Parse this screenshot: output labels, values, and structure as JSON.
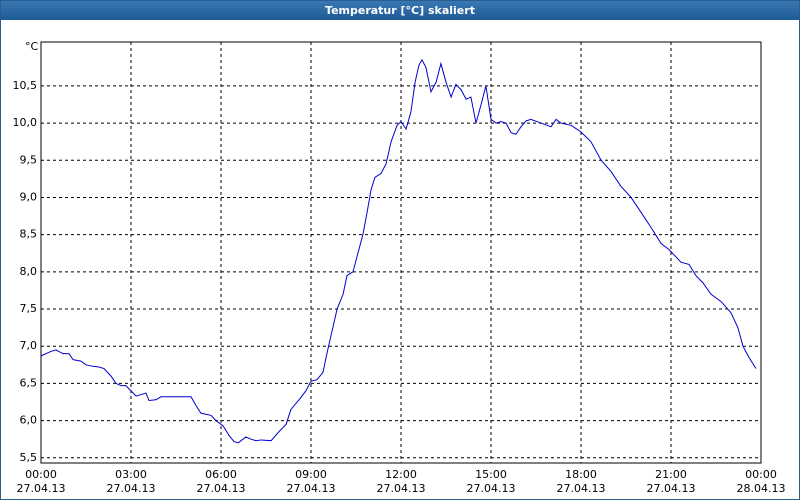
{
  "chart_data": {
    "type": "line",
    "title": "Temperatur [°C] skaliert",
    "y_label": "°C",
    "x": [
      0,
      0.33,
      0.5,
      0.73,
      0.93,
      1.07,
      1.33,
      1.5,
      1.73,
      1.93,
      2.1,
      2.33,
      2.5,
      2.67,
      2.83,
      3,
      3.17,
      3.5,
      3.6,
      3.83,
      4,
      5,
      5.17,
      5.33,
      5.67,
      5.83,
      6.07,
      6.27,
      6.43,
      6.57,
      6.83,
      7,
      7.17,
      7.33,
      7.67,
      7.93,
      8.17,
      8.33,
      8.6,
      8.83,
      9,
      9.2,
      9.4,
      9.53,
      9.67,
      9.87,
      10.07,
      10.2,
      10.4,
      10.53,
      10.73,
      10.87,
      11,
      11.13,
      11.33,
      11.5,
      11.67,
      11.87,
      12,
      12.17,
      12.33,
      12.47,
      12.6,
      12.7,
      12.83,
      13,
      13.17,
      13.33,
      13.5,
      13.67,
      13.83,
      14,
      14.17,
      14.33,
      14.5,
      14.67,
      14.83,
      15,
      15.17,
      15.33,
      15.5,
      15.67,
      15.83,
      16,
      16.17,
      16.33,
      16.67,
      17,
      17.17,
      17.33,
      17.67,
      18,
      18.33,
      18.67,
      19,
      19.33,
      19.67,
      20,
      20.33,
      20.67,
      20.93,
      21.17,
      21.33,
      21.6,
      21.83,
      22.07,
      22.33,
      22.67,
      23,
      23.23,
      23.4,
      23.6,
      23.83
    ],
    "series": [
      {
        "name": "Temperatur",
        "color": "#0000cc",
        "values": [
          6.87,
          6.93,
          6.95,
          6.9,
          6.9,
          6.82,
          6.8,
          6.75,
          6.73,
          6.72,
          6.7,
          6.6,
          6.5,
          6.47,
          6.47,
          6.4,
          6.33,
          6.37,
          6.27,
          6.28,
          6.32,
          6.32,
          6.2,
          6.1,
          6.07,
          6.0,
          5.93,
          5.8,
          5.72,
          5.7,
          5.78,
          5.75,
          5.73,
          5.74,
          5.73,
          5.85,
          5.95,
          6.15,
          6.28,
          6.4,
          6.53,
          6.55,
          6.65,
          6.9,
          7.15,
          7.5,
          7.7,
          7.95,
          8.0,
          8.2,
          8.5,
          8.8,
          9.1,
          9.27,
          9.32,
          9.45,
          9.75,
          9.97,
          10.02,
          9.92,
          10.15,
          10.55,
          10.78,
          10.85,
          10.75,
          10.42,
          10.55,
          10.8,
          10.55,
          10.35,
          10.52,
          10.45,
          10.32,
          10.35,
          10.0,
          10.25,
          10.5,
          10.05,
          10.0,
          10.02,
          10.0,
          9.87,
          9.85,
          9.95,
          10.03,
          10.05,
          10.0,
          9.95,
          10.05,
          10.0,
          9.97,
          9.88,
          9.75,
          9.5,
          9.35,
          9.15,
          9.0,
          8.8,
          8.6,
          8.38,
          8.3,
          8.2,
          8.13,
          8.1,
          7.95,
          7.85,
          7.7,
          7.6,
          7.45,
          7.25,
          7.0,
          6.85,
          6.7
        ]
      }
    ],
    "xlim": [
      0,
      24
    ],
    "ylim": [
      5.43,
      11.09
    ],
    "xticks": [
      {
        "value": 0,
        "label": "00:00\n27.04.13"
      },
      {
        "value": 3,
        "label": "03:00\n27.04.13"
      },
      {
        "value": 6,
        "label": "06:00\n27.04.13"
      },
      {
        "value": 9,
        "label": "09:00\n27.04.13"
      },
      {
        "value": 12,
        "label": "12:00\n27.04.13"
      },
      {
        "value": 15,
        "label": "15:00\n27.04.13"
      },
      {
        "value": 18,
        "label": "18:00\n27.04.13"
      },
      {
        "value": 21,
        "label": "21:00\n27.04.13"
      },
      {
        "value": 24,
        "label": "00:00\n28.04.13"
      }
    ],
    "yticks": [
      {
        "value": 5.5,
        "label": "5,5"
      },
      {
        "value": 6,
        "label": "6,0"
      },
      {
        "value": 6.5,
        "label": "6,5"
      },
      {
        "value": 7,
        "label": "7,0"
      },
      {
        "value": 7.5,
        "label": "7,5"
      },
      {
        "value": 8,
        "label": "8,0"
      },
      {
        "value": 8.5,
        "label": "8,5"
      },
      {
        "value": 9,
        "label": "9,0"
      },
      {
        "value": 9.5,
        "label": "9,5"
      },
      {
        "value": 10,
        "label": "10,0"
      },
      {
        "value": 10.5,
        "label": "10,5"
      }
    ],
    "grid": true
  }
}
